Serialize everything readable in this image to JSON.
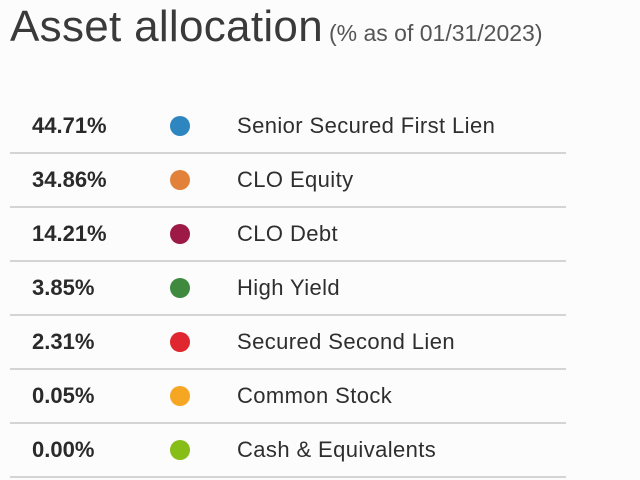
{
  "header": {
    "title": "Asset allocation",
    "subtitle": "(% as of 01/31/2023)"
  },
  "allocations": [
    {
      "percent": "44.71%",
      "label": "Senior Secured First Lien",
      "color": "#2e86c1",
      "icon": "blue-dot-icon"
    },
    {
      "percent": "34.86%",
      "label": "CLO Equity",
      "color": "#e2813a",
      "icon": "orange-dot-icon"
    },
    {
      "percent": "14.21%",
      "label": "CLO Debt",
      "color": "#9c1a45",
      "icon": "maroon-dot-icon"
    },
    {
      "percent": "3.85%",
      "label": "High Yield",
      "color": "#3f8a3f",
      "icon": "green-dot-icon"
    },
    {
      "percent": "2.31%",
      "label": "Secured Second Lien",
      "color": "#e0262e",
      "icon": "red-dot-icon"
    },
    {
      "percent": "0.05%",
      "label": "Common Stock",
      "color": "#f5a623",
      "icon": "amber-dot-icon"
    },
    {
      "percent": "0.00%",
      "label": "Cash & Equivalents",
      "color": "#86bd16",
      "icon": "lime-dot-icon"
    }
  ]
}
